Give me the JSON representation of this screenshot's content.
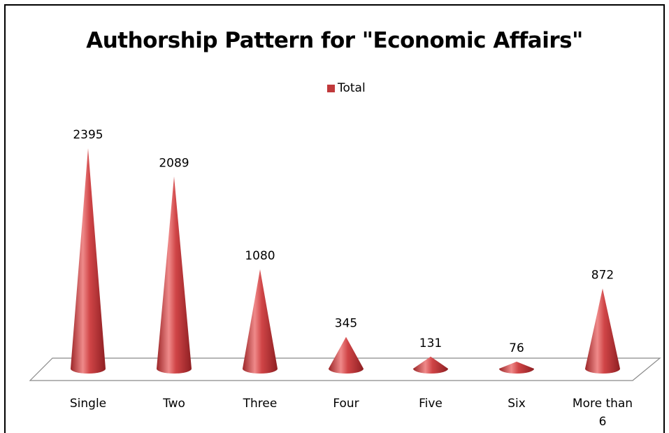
{
  "chart_data": {
    "type": "bar",
    "style": "3d-cone",
    "title": "Authorship Pattern for \"Economic Affairs\"",
    "categories": [
      "Single",
      "Two",
      "Three",
      "Four",
      "Five",
      "Six",
      "More than 6"
    ],
    "series": [
      {
        "name": "Total",
        "values": [
          2395,
          2089,
          1080,
          345,
          131,
          76,
          872
        ]
      }
    ],
    "legend": {
      "position": "top",
      "entries": [
        "Total"
      ]
    },
    "grid": false,
    "colors": {
      "series": "#c0393b",
      "series_light": "#ef8a8a",
      "series_dark": "#8e1f22"
    }
  }
}
